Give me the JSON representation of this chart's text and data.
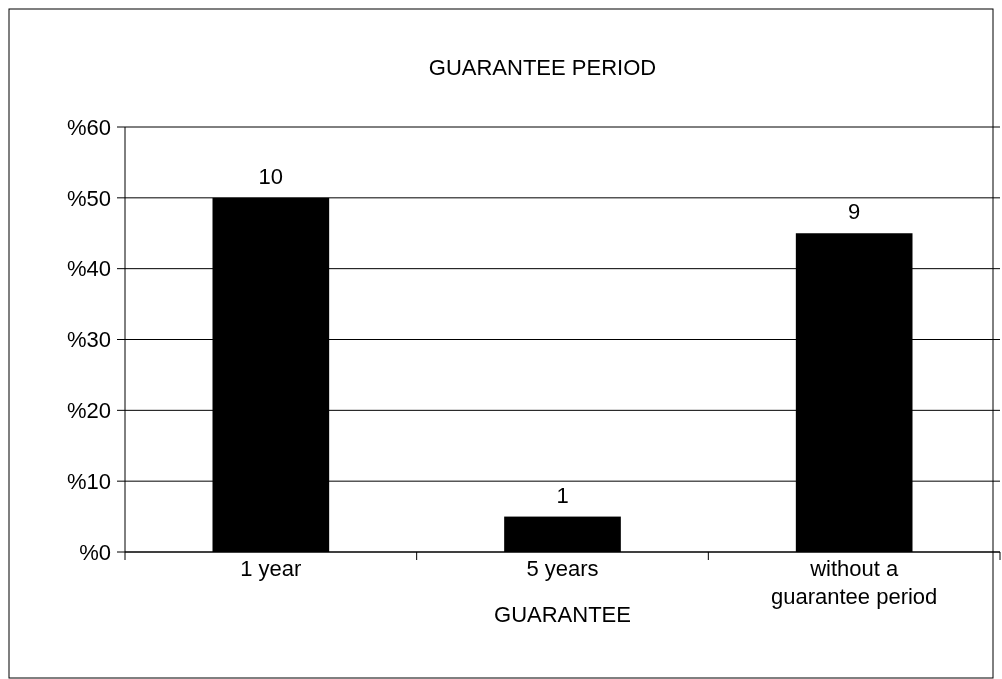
{
  "chart_data": {
    "type": "bar",
    "title": "GUARANTEE PERIOD",
    "xlabel": "GUARANTEE",
    "categories": [
      "1 year",
      "5 years",
      "without a guarantee period"
    ],
    "values": [
      50,
      5,
      45
    ],
    "color": "#000000",
    "annotations": [
      {
        "text": "10",
        "x": "1 year",
        "y": 50
      },
      {
        "text": "1",
        "x": "5 years",
        "y": 5
      },
      {
        "text": "9",
        "x": "without a guarantee period",
        "y": 45
      }
    ],
    "ylim": [
      0,
      60
    ],
    "yticks": [
      {
        "value": 0,
        "label": "%0"
      },
      {
        "value": 10,
        "label": "%10"
      },
      {
        "value": 20,
        "label": "%20"
      },
      {
        "value": 30,
        "label": "%30"
      },
      {
        "value": 40,
        "label": "%40"
      },
      {
        "value": 50,
        "label": "%50"
      },
      {
        "value": 60,
        "label": "%60"
      }
    ],
    "grid": "y"
  }
}
